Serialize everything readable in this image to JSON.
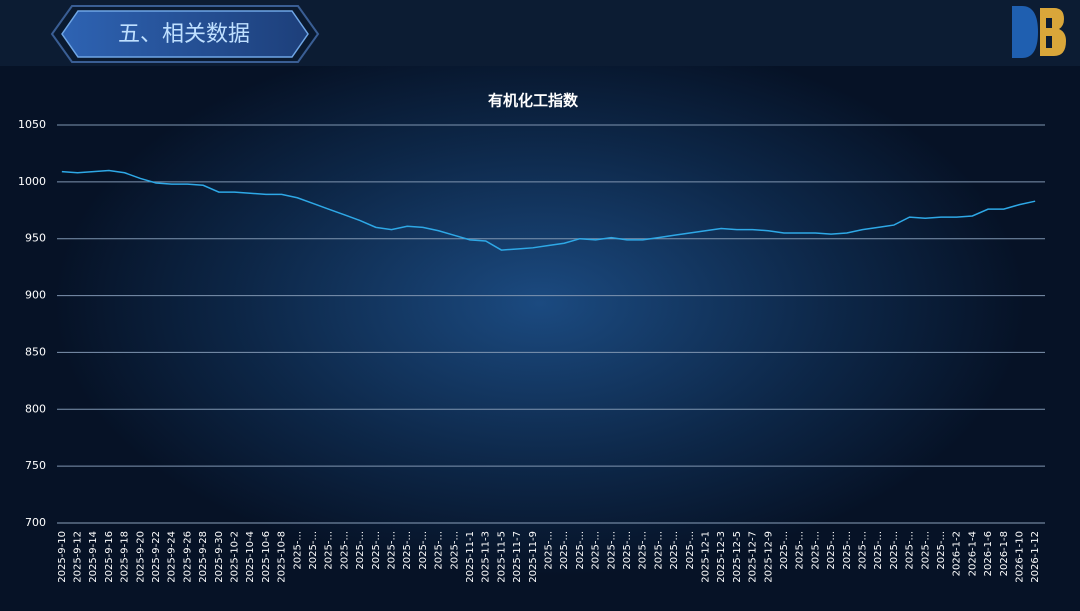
{
  "header": {
    "title": "五、相关数据"
  },
  "chart_data": {
    "type": "line",
    "title": "有机化工指数",
    "categories": [
      "2025-9-10",
      "2025-9-12",
      "2025-9-14",
      "2025-9-16",
      "2025-9-18",
      "2025-9-20",
      "2025-9-22",
      "2025-9-24",
      "2025-9-26",
      "2025-9-28",
      "2025-9-30",
      "2025-10-2",
      "2025-10-4",
      "2025-10-6",
      "2025-10-8",
      "2025-...",
      "2025-...",
      "2025-...",
      "2025-...",
      "2025-...",
      "2025-...",
      "2025-...",
      "2025-...",
      "2025-...",
      "2025-...",
      "2025-...",
      "2025-11-1",
      "2025-11-3",
      "2025-11-5",
      "2025-11-7",
      "2025-11-9",
      "2025-...",
      "2025-...",
      "2025-...",
      "2025-...",
      "2025-...",
      "2025-...",
      "2025-...",
      "2025-...",
      "2025-...",
      "2025-...",
      "2025-12-1",
      "2025-12-3",
      "2025-12-5",
      "2025-12-7",
      "2025-12-9",
      "2025-...",
      "2025-...",
      "2025-...",
      "2025-...",
      "2025-...",
      "2025-...",
      "2025-...",
      "2025-...",
      "2025-...",
      "2025-...",
      "2025-...",
      "2026-1-2",
      "2026-1-4",
      "2026-1-6",
      "2026-1-8",
      "2026-1-10",
      "2026-1-12"
    ],
    "values": [
      1009,
      1008,
      1009,
      1010,
      1008,
      1003,
      999,
      998,
      998,
      997,
      991,
      991,
      990,
      989,
      989,
      986,
      981,
      976,
      971,
      966,
      960,
      958,
      961,
      960,
      957,
      953,
      949,
      948,
      940,
      941,
      942,
      944,
      946,
      950,
      949,
      951,
      949,
      949,
      951,
      953,
      955,
      957,
      959,
      958,
      958,
      957,
      955,
      955,
      955,
      954,
      955,
      958,
      960,
      962,
      969,
      968,
      969,
      969,
      970,
      976,
      976,
      980,
      983
    ],
    "color": "#2ea8e6",
    "ylim": [
      700,
      1050
    ],
    "yticks": [
      700,
      750,
      800,
      850,
      900,
      950,
      1000,
      1050
    ],
    "grid": true
  }
}
